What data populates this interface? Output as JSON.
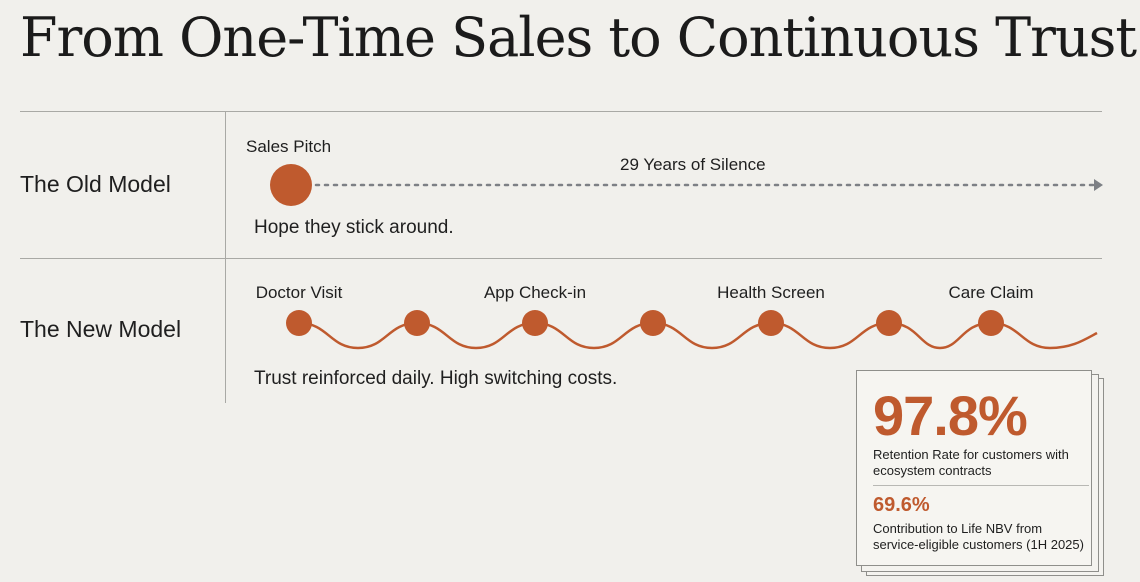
{
  "title": "From One-Time Sales to Continuous Trust",
  "old_model": {
    "label": "The Old Model",
    "node_label": "Sales Pitch",
    "gap_label": "29 Years of Silence",
    "caption": "Hope they stick around."
  },
  "new_model": {
    "label": "The New Model",
    "touchpoints": [
      "Doctor Visit",
      "App Check-in",
      "Health Screen",
      "Care Claim"
    ],
    "caption": "Trust reinforced daily. High switching costs."
  },
  "stats": {
    "primary_value": "97.8%",
    "primary_desc": "Retention Rate for customers with ecosystem contracts",
    "secondary_value": "69.6%",
    "secondary_desc": "Contribution to Life NBV from service-eligible customers (1H 2025)"
  },
  "colors": {
    "accent": "#bf5a2e",
    "background": "#f1f0ec",
    "rule": "#a9a9a5",
    "dotted": "#7d8085"
  }
}
